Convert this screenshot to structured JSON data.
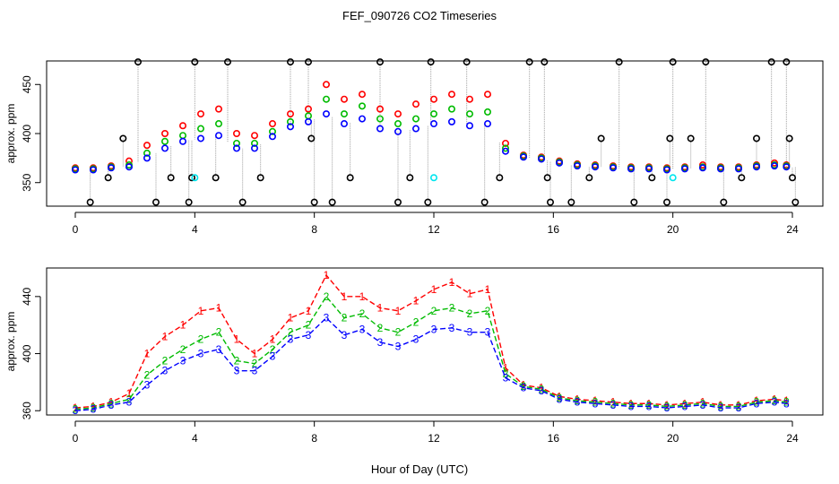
{
  "title": "FEF_090726  CO2 Timeseries",
  "xlabel": "Hour of Day (UTC)",
  "colors": {
    "calibration": "#000000",
    "series1": "#ff0000",
    "series2": "#00bb00",
    "series3": "#0000ff",
    "standard": "#00e5ee",
    "connector": "#a0a0a0",
    "axis": "#000000"
  },
  "chart_data": [
    {
      "type": "scatter",
      "ylabel": "approx. ppm",
      "xlim": [
        0,
        24
      ],
      "ylim": [
        326,
        474
      ],
      "xticks": [
        0,
        4,
        8,
        12,
        16,
        20,
        24
      ],
      "yticks": [
        350,
        400,
        450
      ],
      "x_hours": [
        0.0,
        0.6,
        1.2,
        1.8,
        2.4,
        3.0,
        3.6,
        4.2,
        4.8,
        5.4,
        6.0,
        6.6,
        7.2,
        7.8,
        8.4,
        9.0,
        9.6,
        10.2,
        10.8,
        11.4,
        12.0,
        12.6,
        13.2,
        13.8,
        14.4,
        15.0,
        15.6,
        16.2,
        16.8,
        17.4,
        18.0,
        18.6,
        19.2,
        19.8,
        20.4,
        21.0,
        21.6,
        22.2,
        22.8,
        23.4,
        23.8
      ],
      "series": [
        {
          "name": "1",
          "values": [
            365,
            365,
            367,
            372,
            388,
            400,
            408,
            420,
            425,
            400,
            398,
            410,
            420,
            425,
            450,
            435,
            440,
            425,
            420,
            430,
            435,
            440,
            435,
            440,
            390,
            378,
            376,
            372,
            369,
            368,
            367,
            366,
            366,
            365,
            366,
            368,
            366,
            366,
            368,
            370,
            368
          ]
        },
        {
          "name": "2",
          "values": [
            364,
            364,
            366,
            368,
            380,
            392,
            398,
            405,
            410,
            390,
            390,
            402,
            412,
            418,
            435,
            420,
            428,
            415,
            410,
            415,
            420,
            425,
            420,
            422,
            385,
            377,
            375,
            371,
            368,
            367,
            366,
            365,
            365,
            364,
            365,
            366,
            365,
            365,
            367,
            368,
            367
          ]
        },
        {
          "name": "3",
          "values": [
            363,
            363,
            365,
            366,
            375,
            385,
            392,
            395,
            398,
            385,
            385,
            397,
            407,
            412,
            420,
            410,
            415,
            405,
            402,
            405,
            410,
            412,
            408,
            410,
            382,
            376,
            374,
            370,
            367,
            366,
            365,
            364,
            364,
            363,
            364,
            365,
            364,
            364,
            366,
            367,
            366
          ]
        }
      ],
      "calibration_points": [
        {
          "x": 0.5,
          "y": 330
        },
        {
          "x": 1.1,
          "y": 355
        },
        {
          "x": 1.6,
          "y": 395
        },
        {
          "x": 2.1,
          "y": 473
        },
        {
          "x": 2.7,
          "y": 330
        },
        {
          "x": 3.2,
          "y": 355
        },
        {
          "x": 3.8,
          "y": 330
        },
        {
          "x": 3.9,
          "y": 355
        },
        {
          "x": 4.0,
          "y": 473
        },
        {
          "x": 4.7,
          "y": 355
        },
        {
          "x": 5.1,
          "y": 473
        },
        {
          "x": 5.6,
          "y": 330
        },
        {
          "x": 6.2,
          "y": 355
        },
        {
          "x": 7.2,
          "y": 473
        },
        {
          "x": 7.8,
          "y": 473
        },
        {
          "x": 7.9,
          "y": 395
        },
        {
          "x": 8.0,
          "y": 330
        },
        {
          "x": 8.6,
          "y": 330
        },
        {
          "x": 9.2,
          "y": 355
        },
        {
          "x": 10.2,
          "y": 473
        },
        {
          "x": 10.8,
          "y": 330
        },
        {
          "x": 11.2,
          "y": 355
        },
        {
          "x": 11.8,
          "y": 330
        },
        {
          "x": 11.9,
          "y": 473
        },
        {
          "x": 13.1,
          "y": 473
        },
        {
          "x": 13.7,
          "y": 330
        },
        {
          "x": 14.2,
          "y": 355
        },
        {
          "x": 15.2,
          "y": 473
        },
        {
          "x": 15.7,
          "y": 473
        },
        {
          "x": 15.8,
          "y": 355
        },
        {
          "x": 15.9,
          "y": 330
        },
        {
          "x": 16.6,
          "y": 330
        },
        {
          "x": 17.2,
          "y": 355
        },
        {
          "x": 17.6,
          "y": 395
        },
        {
          "x": 18.2,
          "y": 473
        },
        {
          "x": 18.7,
          "y": 330
        },
        {
          "x": 19.3,
          "y": 355
        },
        {
          "x": 19.8,
          "y": 330
        },
        {
          "x": 19.9,
          "y": 395
        },
        {
          "x": 20.0,
          "y": 473
        },
        {
          "x": 20.6,
          "y": 395
        },
        {
          "x": 21.1,
          "y": 473
        },
        {
          "x": 21.7,
          "y": 330
        },
        {
          "x": 22.3,
          "y": 355
        },
        {
          "x": 22.8,
          "y": 395
        },
        {
          "x": 23.3,
          "y": 473
        },
        {
          "x": 23.8,
          "y": 473
        },
        {
          "x": 23.9,
          "y": 395
        },
        {
          "x": 24.0,
          "y": 355
        },
        {
          "x": 24.1,
          "y": 330
        }
      ],
      "standard_points": [
        {
          "x": 4.0,
          "y": 355
        },
        {
          "x": 12.0,
          "y": 355
        },
        {
          "x": 20.0,
          "y": 355
        }
      ]
    },
    {
      "type": "line",
      "ylabel": "approx. ppm",
      "xlim": [
        0,
        24
      ],
      "ylim": [
        357,
        460
      ],
      "xticks": [
        0,
        4,
        8,
        12,
        16,
        20,
        24
      ],
      "yticks": [
        360,
        400,
        440
      ],
      "x_hours": [
        0.0,
        0.6,
        1.2,
        1.8,
        2.4,
        3.0,
        3.6,
        4.2,
        4.8,
        5.4,
        6.0,
        6.6,
        7.2,
        7.8,
        8.4,
        9.0,
        9.6,
        10.2,
        10.8,
        11.4,
        12.0,
        12.6,
        13.2,
        13.8,
        14.4,
        15.0,
        15.6,
        16.2,
        16.8,
        17.4,
        18.0,
        18.6,
        19.2,
        19.8,
        20.4,
        21.0,
        21.6,
        22.2,
        22.8,
        23.4,
        23.8
      ],
      "series": [
        {
          "name": "1",
          "label": "1",
          "values": [
            362,
            363,
            366,
            372,
            400,
            412,
            420,
            430,
            432,
            410,
            400,
            410,
            425,
            430,
            455,
            440,
            440,
            432,
            430,
            437,
            445,
            450,
            442,
            445,
            390,
            378,
            376,
            370,
            368,
            367,
            366,
            365,
            365,
            364,
            365,
            366,
            364,
            364,
            367,
            368,
            367
          ]
        },
        {
          "name": "2",
          "label": "2",
          "values": [
            361,
            362,
            365,
            368,
            385,
            395,
            403,
            410,
            415,
            395,
            393,
            403,
            415,
            420,
            440,
            425,
            428,
            418,
            415,
            422,
            430,
            432,
            428,
            430,
            386,
            377,
            375,
            369,
            367,
            366,
            365,
            364,
            364,
            363,
            364,
            365,
            363,
            363,
            366,
            367,
            366
          ]
        },
        {
          "name": "3",
          "label": "3",
          "values": [
            360,
            361,
            364,
            366,
            378,
            388,
            395,
            400,
            403,
            388,
            388,
            398,
            410,
            413,
            425,
            413,
            417,
            408,
            405,
            410,
            417,
            418,
            415,
            415,
            383,
            376,
            374,
            368,
            366,
            365,
            364,
            363,
            363,
            362,
            363,
            364,
            362,
            362,
            365,
            366,
            365
          ]
        }
      ]
    }
  ]
}
